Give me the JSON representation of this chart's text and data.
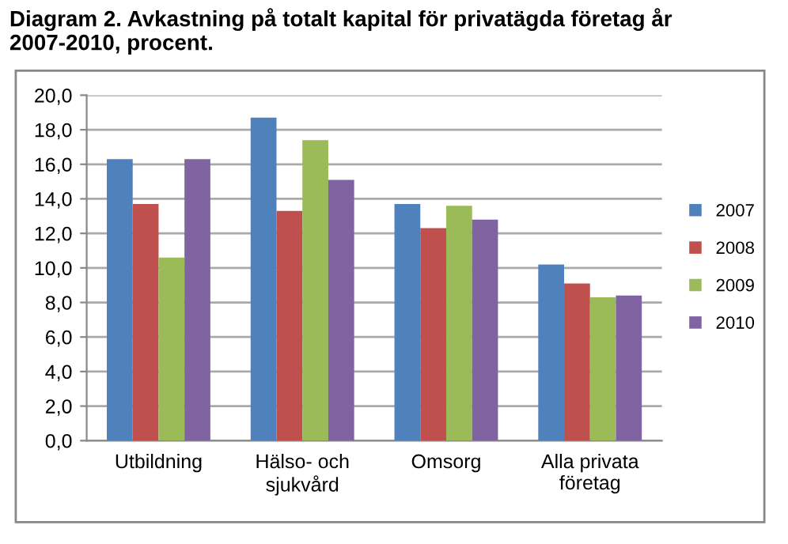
{
  "chart_data": {
    "type": "bar",
    "title": "Diagram 2. Avkastning på totalt kapital för privatägda företag år 2007-2010, procent.",
    "categories": [
      "Utbildning",
      "Hälso- och\nsjukvård",
      "Omsorg",
      "Alla privata\nföretag"
    ],
    "series": [
      {
        "name": "2007",
        "color": "#4f81bd",
        "values": [
          16.3,
          18.7,
          13.7,
          10.2
        ]
      },
      {
        "name": "2008",
        "color": "#c0504d",
        "values": [
          13.7,
          13.3,
          12.3,
          9.1
        ]
      },
      {
        "name": "2009",
        "color": "#9bbb59",
        "values": [
          10.6,
          17.4,
          13.6,
          8.3
        ]
      },
      {
        "name": "2010",
        "color": "#8064a2",
        "values": [
          16.3,
          15.1,
          12.8,
          8.4
        ]
      }
    ],
    "ylim": [
      0,
      20
    ],
    "yticks": [
      {
        "value": 0,
        "label": "0,0"
      },
      {
        "value": 2,
        "label": "2,0"
      },
      {
        "value": 4,
        "label": "4,0"
      },
      {
        "value": 6,
        "label": "6,0"
      },
      {
        "value": 8,
        "label": "8,0"
      },
      {
        "value": 10,
        "label": "10,0"
      },
      {
        "value": 12,
        "label": "12,0"
      },
      {
        "value": 14,
        "label": "14,0"
      },
      {
        "value": 16,
        "label": "16,0"
      },
      {
        "value": 18,
        "label": "18,0"
      },
      {
        "value": 20,
        "label": "20,0"
      }
    ],
    "grid": "y",
    "legend": "right"
  }
}
